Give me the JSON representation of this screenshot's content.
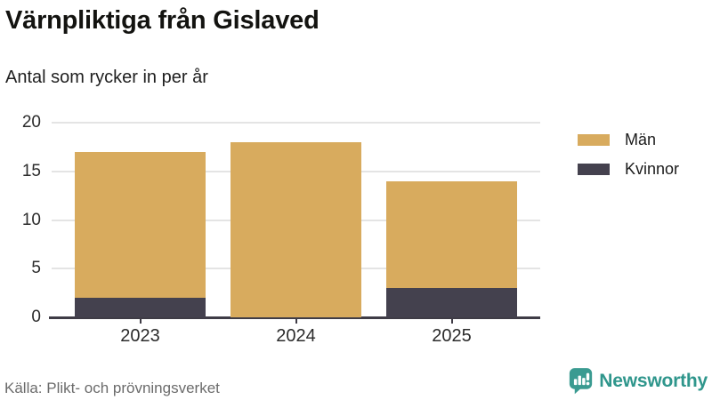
{
  "header": {
    "title": "Värnpliktiga från Gislaved",
    "subtitle": "Antal som rycker in per år"
  },
  "chart_data": {
    "type": "bar",
    "stacked": true,
    "title": "Värnpliktiga från Gislaved",
    "subtitle": "Antal som rycker in per år",
    "categories": [
      "2023",
      "2024",
      "2025"
    ],
    "series": [
      {
        "name": "Män",
        "color": "#d8ab5e",
        "values": [
          15,
          18,
          11
        ]
      },
      {
        "name": "Kvinnor",
        "color": "#44414e",
        "values": [
          2,
          0,
          3
        ]
      }
    ],
    "totals": [
      17,
      18,
      14
    ],
    "xlabel": "",
    "ylabel": "",
    "ylim": [
      0,
      20
    ],
    "yticks": [
      0,
      5,
      10,
      15,
      20
    ],
    "grid": true,
    "legend_position": "right",
    "colors": {
      "gridline": "#e4e4e4",
      "axis": "#3f3c46",
      "tick_label": "#2b2b2b"
    }
  },
  "footer": {
    "source": "Källa: Plikt- och prövningsverket",
    "brand": "Newsworthy",
    "brand_color": "#2f968c"
  }
}
